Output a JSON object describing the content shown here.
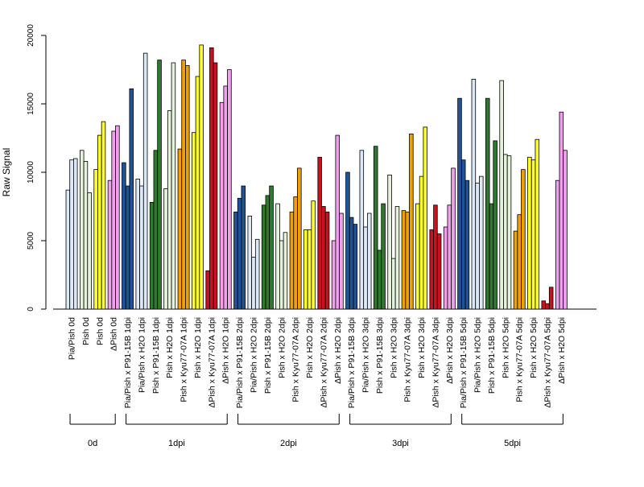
{
  "chart_data": {
    "type": "bar",
    "title": "",
    "xlabel": "",
    "ylabel": "Raw Signal",
    "ylim": [
      0,
      20000
    ],
    "yticks": [
      0,
      5000,
      10000,
      15000,
      20000
    ],
    "grid": false,
    "legend": "none",
    "colors": {
      "Pia/Pish": "#dde9f7",
      "Pish": "#e5f3dc",
      "Pia/Pish x P91-15B": "#1f5596",
      "Pish x P91-15B": "#2f7a2f",
      "Pish x Kyu77-07A": "#f0a000",
      "Pish x H2O": "#ffff2a",
      "ΔPish x Kyu77-07A": "#cc1020",
      "ΔPish x H2O": "#f2a0ee",
      "ΔPish": "#f2a0ee"
    },
    "categories": [
      {
        "label": "Pia/Pish 0d",
        "color_key": "Pia/Pish",
        "values": [
          8700,
          10900,
          11000
        ]
      },
      {
        "label": "Pish 0d",
        "color_key": "Pish",
        "values": [
          11600,
          10800,
          8500
        ]
      },
      {
        "label": "Pish 0d",
        "color_key": "Pish x H2O",
        "values": [
          10200,
          12700,
          13700
        ]
      },
      {
        "label": "ΔPish 0d",
        "color_key": "ΔPish",
        "values": [
          9400,
          13000,
          13400
        ]
      },
      {
        "label": "Pia/Pish x P91-15B 1dpi",
        "color_key": "Pia/Pish x P91-15B",
        "values": [
          10700,
          9000,
          16100
        ]
      },
      {
        "label": "Pia/Pish x H2O 1dpi",
        "color_key": "Pia/Pish",
        "values": [
          9500,
          9000,
          18700
        ]
      },
      {
        "label": "Pish x P91-15B 1dpi",
        "color_key": "Pish x P91-15B",
        "values": [
          7800,
          11600,
          18200
        ]
      },
      {
        "label": "Pish x H2O 1dpi",
        "color_key": "Pish",
        "values": [
          8800,
          14500,
          18000
        ]
      },
      {
        "label": "Pish x Kyu77-07A 1dpi",
        "color_key": "Pish x Kyu77-07A",
        "values": [
          11700,
          18200,
          17800
        ]
      },
      {
        "label": "Pish x H2O 1dpi",
        "color_key": "Pish x H2O",
        "values": [
          12900,
          17000,
          19300
        ]
      },
      {
        "label": "ΔPish x Kyu77-07A 1dpi",
        "color_key": "ΔPish x Kyu77-07A",
        "values": [
          2800,
          19100,
          18000
        ]
      },
      {
        "label": "ΔPish x H2O 1dpi",
        "color_key": "ΔPish x H2O",
        "values": [
          15100,
          16300,
          17500
        ]
      },
      {
        "label": "Pia/Pish x P91-15B 2dpi",
        "color_key": "Pia/Pish x P91-15B",
        "values": [
          7100,
          8100,
          9000
        ]
      },
      {
        "label": "Pia/Pish x H2O 2dpi",
        "color_key": "Pia/Pish",
        "values": [
          6800,
          3800,
          5100
        ]
      },
      {
        "label": "Pish x P91-15B 2dpi",
        "color_key": "Pish x P91-15B",
        "values": [
          7600,
          8300,
          9000
        ]
      },
      {
        "label": "Pish x H2O 2dpi",
        "color_key": "Pish",
        "values": [
          7700,
          5000,
          5600
        ]
      },
      {
        "label": "Pish x Kyu77-07A 2dpi",
        "color_key": "Pish x Kyu77-07A",
        "values": [
          7100,
          8200,
          10300
        ]
      },
      {
        "label": "Pish x H2O 2dpi",
        "color_key": "Pish x H2O",
        "values": [
          5800,
          5800,
          7900
        ]
      },
      {
        "label": "ΔPish x Kyu77-07A 2dpi",
        "color_key": "ΔPish x Kyu77-07A",
        "values": [
          11100,
          7500,
          7100
        ]
      },
      {
        "label": "ΔPish x H2O 2dpi",
        "color_key": "ΔPish x H2O",
        "values": [
          5000,
          12700,
          7000
        ]
      },
      {
        "label": "Pia/Pish x P91-15B 3dpi",
        "color_key": "Pia/Pish x P91-15B",
        "values": [
          10000,
          6700,
          6200
        ]
      },
      {
        "label": "Pia/Pish x H2O 3dpi",
        "color_key": "Pia/Pish",
        "values": [
          11600,
          6000,
          7000
        ]
      },
      {
        "label": "Pish x P91-15B 3dpi",
        "color_key": "Pish x P91-15B",
        "values": [
          11900,
          4300,
          7700
        ]
      },
      {
        "label": "Pish x H2O 3dpi",
        "color_key": "Pish",
        "values": [
          9800,
          3700,
          7500
        ]
      },
      {
        "label": "Pish x Kyu77-07A 3dpi",
        "color_key": "Pish x Kyu77-07A",
        "values": [
          7200,
          7100,
          12800
        ]
      },
      {
        "label": "Pish x H2O 3dpi",
        "color_key": "Pish x H2O",
        "values": [
          7700,
          9700,
          13300
        ]
      },
      {
        "label": "ΔPish x Kyu77-07A 3dpi",
        "color_key": "ΔPish x Kyu77-07A",
        "values": [
          5800,
          7600,
          5500
        ]
      },
      {
        "label": "ΔPish x H2O 3dpi",
        "color_key": "ΔPish x H2O",
        "values": [
          6000,
          7600,
          10300
        ]
      },
      {
        "label": "Pia/Pish x P91-15B 5dpi",
        "color_key": "Pia/Pish x P91-15B",
        "values": [
          15400,
          10900,
          9400
        ]
      },
      {
        "label": "Pia/Pish x H2O 5dpi",
        "color_key": "Pia/Pish",
        "values": [
          16800,
          9200,
          9700
        ]
      },
      {
        "label": "Pish x P91-15B 5dpi",
        "color_key": "Pish x P91-15B",
        "values": [
          15400,
          7700,
          12300
        ]
      },
      {
        "label": "Pish x H2O 5dpi",
        "color_key": "Pish",
        "values": [
          16700,
          11300,
          11200
        ]
      },
      {
        "label": "Pish x Kyu77-07A 5dpi",
        "color_key": "Pish x Kyu77-07A",
        "values": [
          5700,
          6900,
          10200
        ]
      },
      {
        "label": "Pish x H2O 5dpi",
        "color_key": "Pish x H2O",
        "values": [
          11100,
          10900,
          12400
        ]
      },
      {
        "label": "ΔPish x Kyu77-07A 5dpi",
        "color_key": "ΔPish x Kyu77-07A",
        "values": [
          600,
          400,
          1600
        ]
      },
      {
        "label": "ΔPish x H2O 5dpi",
        "color_key": "ΔPish x H2O",
        "values": [
          9400,
          14400,
          11600
        ]
      }
    ],
    "groups": [
      {
        "label": "0d",
        "from": 0,
        "to": 3
      },
      {
        "label": "1dpi",
        "from": 4,
        "to": 11
      },
      {
        "label": "2dpi",
        "from": 12,
        "to": 19
      },
      {
        "label": "3dpi",
        "from": 20,
        "to": 27
      },
      {
        "label": "5dpi",
        "from": 28,
        "to": 35
      }
    ]
  }
}
